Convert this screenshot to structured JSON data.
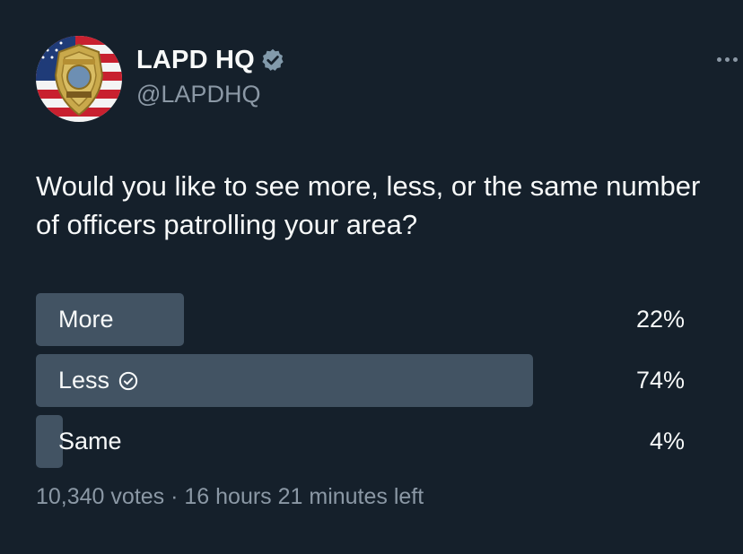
{
  "author": {
    "display_name": "LAPD HQ",
    "handle": "@LAPDHQ",
    "verified_icon": "verified-badge-icon",
    "avatar_icon": "lapd-badge-flag-avatar"
  },
  "tweet": {
    "text": "Would you like to see more, less, or the same number of officers patrolling your area?"
  },
  "poll": {
    "options": [
      {
        "label": "More",
        "percent_text": "22%",
        "percent": 22,
        "selected": false
      },
      {
        "label": "Less",
        "percent_text": "74%",
        "percent": 74,
        "selected": true
      },
      {
        "label": "Same",
        "percent_text": "4%",
        "percent": 4,
        "selected": false
      }
    ],
    "votes_text": "10,340 votes · 16 hours 21 minutes left"
  },
  "colors": {
    "background": "#15202b",
    "bar": "#425363",
    "secondary_text": "#8b98a5",
    "primary_text": "#f7f9f9"
  }
}
